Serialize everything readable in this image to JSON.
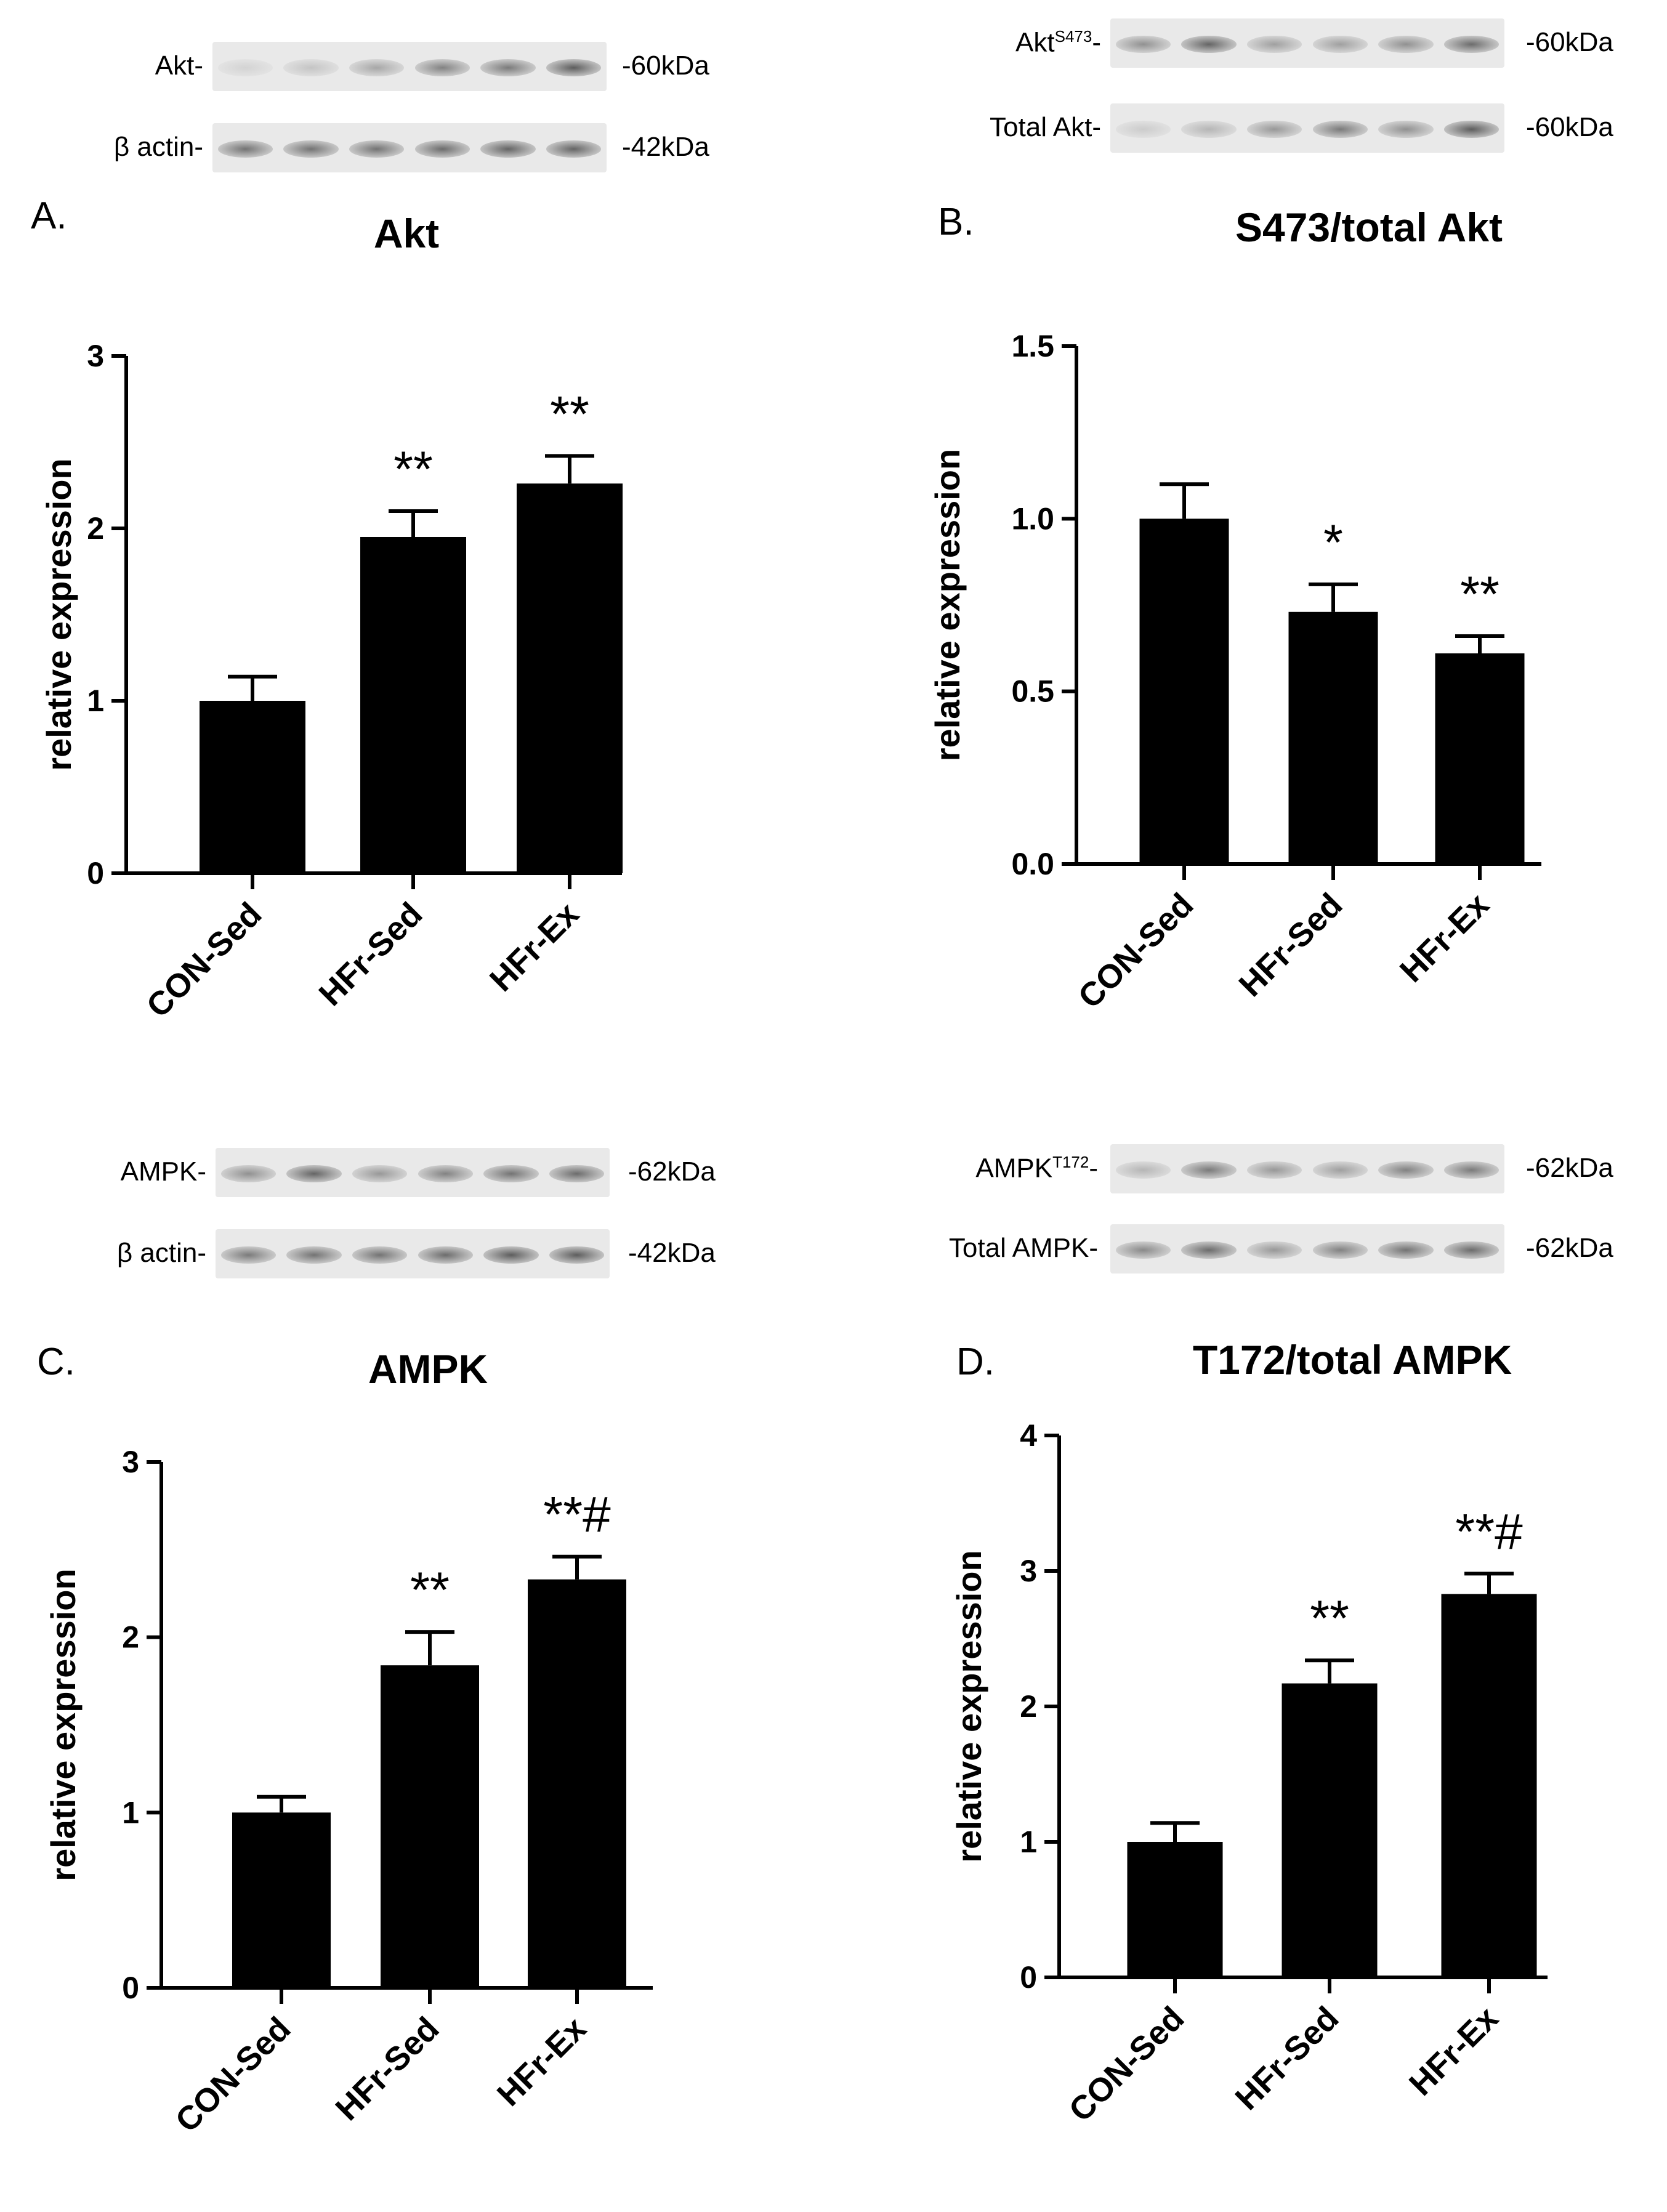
{
  "panels": [
    {
      "id": "A",
      "letter": "A.",
      "blots": [
        {
          "label": "Akt-",
          "label_base": "Akt",
          "superscript": "",
          "size": "-60kDa",
          "intensities": [
            0.15,
            0.25,
            0.45,
            0.7,
            0.75,
            0.95
          ]
        },
        {
          "label": "β actin-",
          "label_base": "β actin",
          "superscript": "",
          "size": "-42kDa",
          "intensities": [
            0.8,
            0.8,
            0.8,
            0.85,
            0.9,
            0.9
          ]
        }
      ]
    },
    {
      "id": "B",
      "letter": "B.",
      "blots": [
        {
          "label": "AktS473-",
          "label_base": "Akt",
          "superscript": "S473",
          "size": "-60kDa",
          "intensities": [
            0.6,
            0.9,
            0.5,
            0.5,
            0.6,
            0.85
          ]
        },
        {
          "label": "Total Akt-",
          "label_base": "Total Akt",
          "superscript": "",
          "size": "-60kDa",
          "intensities": [
            0.2,
            0.35,
            0.55,
            0.75,
            0.6,
            0.95
          ]
        }
      ]
    },
    {
      "id": "C",
      "letter": "C.",
      "blots": [
        {
          "label": "AMPK-",
          "label_base": "AMPK",
          "superscript": "",
          "size": "-62kDa",
          "intensities": [
            0.6,
            0.9,
            0.55,
            0.7,
            0.8,
            0.85
          ]
        },
        {
          "label": "β actin-",
          "label_base": "β actin",
          "superscript": "",
          "size": "-42kDa",
          "intensities": [
            0.75,
            0.8,
            0.8,
            0.85,
            0.95,
            0.95
          ]
        }
      ]
    },
    {
      "id": "D",
      "letter": "D.",
      "blots": [
        {
          "label": "AMPKT172-",
          "label_base": "AMPK",
          "superscript": "T172",
          "size": "-62kDa",
          "intensities": [
            0.35,
            0.75,
            0.55,
            0.5,
            0.7,
            0.75
          ]
        },
        {
          "label": "Total AMPK-",
          "label_base": "Total AMPK",
          "superscript": "",
          "size": "-62kDa",
          "intensities": [
            0.65,
            0.85,
            0.55,
            0.7,
            0.8,
            0.85
          ]
        }
      ]
    }
  ],
  "chart_data": [
    {
      "type": "bar",
      "title": "Akt",
      "ylabel": "relative expression",
      "categories": [
        "CON-Sed",
        "HFr-Sed",
        "HFr-Ex"
      ],
      "values": [
        1.0,
        1.95,
        2.26
      ],
      "errors": [
        0.14,
        0.15,
        0.16
      ],
      "annotations": [
        "",
        "**",
        "**"
      ],
      "ylim": [
        0,
        3
      ],
      "yticks": [
        0,
        1,
        2,
        3
      ],
      "yticklabels": [
        "0",
        "1",
        "2",
        "3"
      ],
      "bar_color": "#000000"
    },
    {
      "type": "bar",
      "title": "S473/total Akt",
      "ylabel": "relative expression",
      "categories": [
        "CON-Sed",
        "HFr-Sed",
        "HFr-Ex"
      ],
      "values": [
        1.0,
        0.73,
        0.61
      ],
      "errors": [
        0.1,
        0.08,
        0.05
      ],
      "annotations": [
        "",
        "*",
        "**"
      ],
      "ylim": [
        0,
        1.5
      ],
      "yticks": [
        0,
        0.5,
        1.0,
        1.5
      ],
      "yticklabels": [
        "0.0",
        "0.5",
        "1.0",
        "1.5"
      ],
      "bar_color": "#000000"
    },
    {
      "type": "bar",
      "title": "AMPK",
      "ylabel": "relative expression",
      "categories": [
        "CON-Sed",
        "HFr-Sed",
        "HFr-Ex"
      ],
      "values": [
        1.0,
        1.84,
        2.33
      ],
      "errors": [
        0.09,
        0.19,
        0.13
      ],
      "annotations": [
        "",
        "**",
        "**#"
      ],
      "ylim": [
        0,
        3
      ],
      "yticks": [
        0,
        1,
        2,
        3
      ],
      "yticklabels": [
        "0",
        "1",
        "2",
        "3"
      ],
      "bar_color": "#000000"
    },
    {
      "type": "bar",
      "title": "T172/total AMPK",
      "ylabel": "relative expression",
      "categories": [
        "CON-Sed",
        "HFr-Sed",
        "HFr-Ex"
      ],
      "values": [
        1.0,
        2.17,
        2.83
      ],
      "errors": [
        0.14,
        0.17,
        0.15
      ],
      "annotations": [
        "",
        "**",
        "**#"
      ],
      "ylim": [
        0,
        4
      ],
      "yticks": [
        0,
        1,
        2,
        3,
        4
      ],
      "yticklabels": [
        "0",
        "1",
        "2",
        "3",
        "4"
      ],
      "bar_color": "#000000"
    }
  ]
}
